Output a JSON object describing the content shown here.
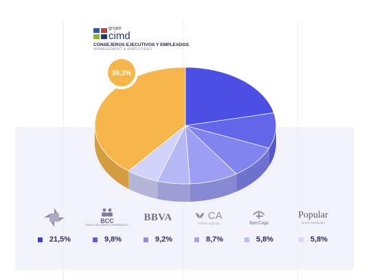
{
  "header": {
    "logo_grupo": "grupo",
    "logo_cimd": "cimd",
    "title": "CONSEJEROS EJECUTIVOS Y EMPLEADOS",
    "subtitle": "MANAGEMENT & EMPLOYEES"
  },
  "colors": {
    "orange": "#f7b64a",
    "series": [
      "#4c4fe3",
      "#6466ea",
      "#8183ef",
      "#9c9ef3",
      "#b6b8f6",
      "#d2d3fa"
    ],
    "legend": [
      "#3d3fd4",
      "#5a5ce2",
      "#8a8cee",
      "#a2a4f2",
      "#babcf6",
      "#d6d7fa"
    ]
  },
  "chart_data": {
    "type": "pie",
    "slices": [
      {
        "label": "grupo cimd",
        "value": 39.2
      },
      {
        "label": "CECA",
        "value": 21.5
      },
      {
        "label": "BCC",
        "value": 9.8
      },
      {
        "label": "BBVA",
        "value": 9.2
      },
      {
        "label": "CA",
        "value": 8.7
      },
      {
        "label": "Ibercaja",
        "value": 5.8
      },
      {
        "label": "Popular",
        "value": 5.8
      }
    ],
    "callout": "39,2%"
  },
  "shareholders": [
    {
      "name": "CECA",
      "value": "21,5%"
    },
    {
      "name": "BCC",
      "logo_text": "BCC",
      "logo_small": "BANCO DE CREDITO COOPERATIVO",
      "value": "9,8%"
    },
    {
      "name": "BBVA",
      "logo_text": "BBVA",
      "value": "9,2%"
    },
    {
      "name": "CA",
      "logo_text": "CA",
      "logo_small": "Crédito Agrícola",
      "value": "8,7%"
    },
    {
      "name": "Ibercaja",
      "logo_text": "IberCaja",
      "value": "5,8%"
    },
    {
      "name": "Popular",
      "logo_text": "Popular",
      "logo_small": "Grupo Santander",
      "value": "5,8%"
    }
  ]
}
